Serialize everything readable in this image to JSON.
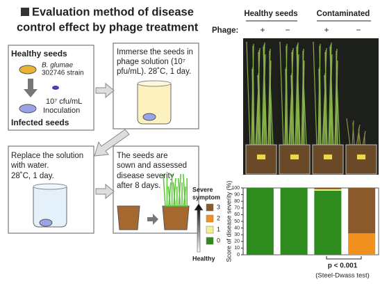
{
  "title_lines": [
    "Evaluation method of disease",
    "control effect by phage treatment"
  ],
  "steps": [
    {
      "lines": [
        "Healthy seeds",
        "B. glumae",
        "302746 strain",
        "10⁷ cfu/mL",
        "Inoculation",
        "Infected seeds"
      ]
    },
    {
      "lines": [
        "Immerse the seeds in",
        "phage solution (10⁷",
        "pfu/mL).  28˚C, 1 day."
      ]
    },
    {
      "lines": [
        "Replace the solution",
        "with water.",
        "28˚C, 1 day."
      ]
    },
    {
      "lines": [
        "The seeds are",
        "sown and assessed",
        "disease severity",
        "after 8 days."
      ]
    }
  ],
  "photo": {
    "groups": [
      "Healthy seeds",
      "Contaminated"
    ],
    "phage_label": "Phage:",
    "phage_signs": [
      "+",
      "−",
      "+",
      "−"
    ]
  },
  "legend": {
    "top": [
      "Severe",
      "symptom"
    ],
    "bottom": "Healthy"
  },
  "chart_data": {
    "type": "stacked-bar",
    "y_label": "Score of disease severity (%)",
    "categories": [
      null,
      null,
      null,
      null
    ],
    "series": [
      {
        "name": "0",
        "color": "#2e8b1e",
        "values": [
          100,
          100,
          96,
          0
        ]
      },
      {
        "name": "1",
        "color": "#f6f08a",
        "values": [
          0,
          0,
          2,
          0
        ]
      },
      {
        "name": "2",
        "color": "#f0901e",
        "values": [
          0,
          0,
          0,
          32
        ]
      },
      {
        "name": "3",
        "color": "#8b5a2b",
        "values": [
          0,
          0,
          2,
          68
        ]
      }
    ],
    "ylim": [
      0,
      100
    ],
    "yticks": [
      0,
      10,
      20,
      30,
      40,
      50,
      60,
      70,
      80,
      90,
      100
    ],
    "grid": false,
    "annotation": "p < 0.001",
    "note": "(Steel-Dwass test)"
  }
}
